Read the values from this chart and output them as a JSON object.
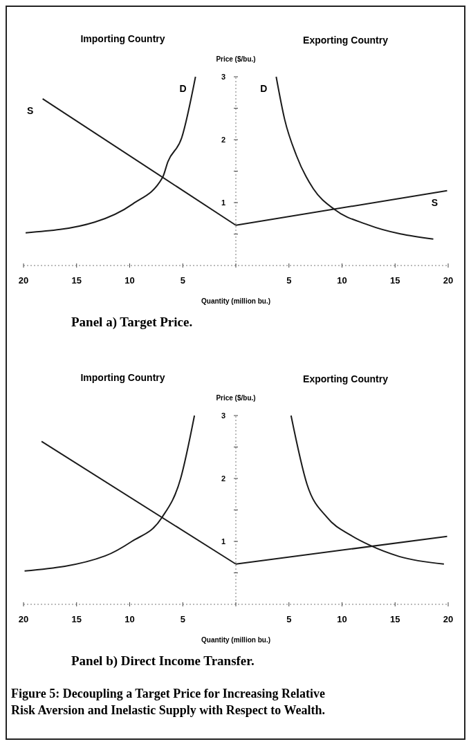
{
  "chart_data": [
    {
      "type": "line",
      "title": "Panel a)  Target Price.",
      "xlabel": "Quantity (million bu.)",
      "ylabel": "Price ($/bu.)",
      "annotations": [
        "Importing Country",
        "Exporting Country"
      ],
      "xlim": [
        -20,
        20
      ],
      "ylim": [
        0,
        3
      ],
      "xticks": [
        {
          "value": -20,
          "label": "20"
        },
        {
          "value": -15,
          "label": "15"
        },
        {
          "value": -10,
          "label": "10"
        },
        {
          "value": -5,
          "label": "5"
        },
        {
          "value": 0,
          "label": null
        },
        {
          "value": 5,
          "label": "5"
        },
        {
          "value": 10,
          "label": "10"
        },
        {
          "value": 15,
          "label": "15"
        },
        {
          "value": 20,
          "label": "20"
        }
      ],
      "yticks": [
        {
          "value": 0.5,
          "label": null
        },
        1,
        {
          "value": 1.5,
          "label": null
        },
        2,
        {
          "value": 2.5,
          "label": null
        },
        3
      ],
      "series": [
        {
          "name": "S",
          "color": "#1a1a1a",
          "x": [
            -18.2,
            0
          ],
          "values": [
            2.65,
            0.64
          ]
        },
        {
          "name": "D",
          "color": "#1a1a1a",
          "x": [
            -19.8,
            -13.3,
            -9.7,
            -6.9,
            -6.4,
            -5.1,
            -3.8
          ],
          "values": [
            0.52,
            0.69,
            0.98,
            1.4,
            1.65,
            2.03,
            3.0
          ]
        },
        {
          "name": "D",
          "color": "#1a1a1a",
          "x": [
            3.8,
            4.6,
            5.7,
            7.3,
            9.3,
            12.4,
            18.6
          ],
          "values": [
            3.0,
            2.32,
            1.75,
            1.22,
            0.89,
            0.65,
            0.42
          ]
        },
        {
          "name": "S",
          "color": "#1a1a1a",
          "x": [
            0,
            19.9
          ],
          "values": [
            0.64,
            1.19
          ]
        }
      ]
    },
    {
      "type": "line",
      "title": "Panel b)  Direct Income Transfer.",
      "xlabel": "Quantity (million bu.)",
      "ylabel": "Price ($/bu.)",
      "annotations": [
        "Importing Country",
        "Exporting Country",
        "Figure 5:  Decoupling a Target Price for Increasing Relative Risk Aversion and Inelastic Supply with Respect to Wealth."
      ],
      "xlim": [
        -20,
        20
      ],
      "ylim": [
        0,
        3
      ],
      "xticks": [
        {
          "value": -20,
          "label": "20"
        },
        {
          "value": -15,
          "label": "15"
        },
        {
          "value": -10,
          "label": "10"
        },
        {
          "value": -5,
          "label": "5"
        },
        {
          "value": 0,
          "label": null
        },
        {
          "value": 5,
          "label": "5"
        },
        {
          "value": 10,
          "label": "10"
        },
        {
          "value": 15,
          "label": "15"
        },
        {
          "value": 20,
          "label": "20"
        }
      ],
      "yticks": [
        {
          "value": 0.5,
          "label": null
        },
        1,
        {
          "value": 1.5,
          "label": null
        },
        2,
        {
          "value": 2.5,
          "label": null
        },
        3
      ],
      "series": [
        {
          "color": "#1a1a1a",
          "x": [
            -18.3,
            0
          ],
          "values": [
            2.59,
            0.64
          ]
        },
        {
          "color": "#1a1a1a",
          "x": [
            -19.9,
            -12.3,
            -9.8,
            -7.0,
            -5.2,
            -3.9
          ],
          "values": [
            0.53,
            0.77,
            1.0,
            1.37,
            2.0,
            3.0
          ]
        },
        {
          "color": "#1a1a1a",
          "x": [
            5.2,
            6.7,
            8.6,
            10.8,
            12.6,
            15.4,
            19.6
          ],
          "values": [
            3.0,
            1.91,
            1.38,
            1.1,
            0.94,
            0.76,
            0.64
          ]
        },
        {
          "color": "#1a1a1a",
          "x": [
            0,
            19.9
          ],
          "values": [
            0.64,
            1.08
          ]
        }
      ]
    }
  ]
}
